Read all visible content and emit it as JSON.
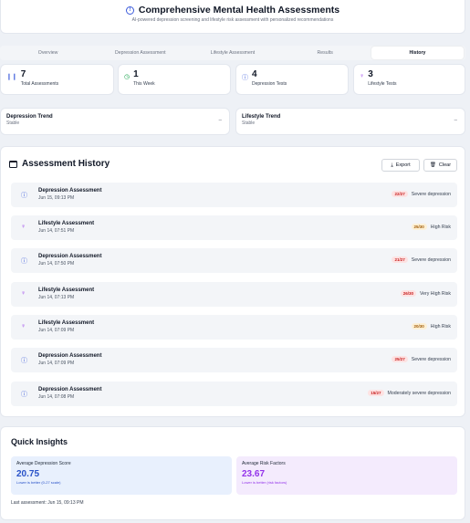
{
  "header": {
    "title": "Comprehensive Mental Health Assessments",
    "subtitle": "AI-powered depression screening and lifestyle risk assessment with personalized recommendations",
    "icon": "brain-icon"
  },
  "tabs": [
    {
      "label": "Overview"
    },
    {
      "label": "Depression Assessment"
    },
    {
      "label": "Lifestyle Assessment"
    },
    {
      "label": "Results"
    },
    {
      "label": "History",
      "active": true
    }
  ],
  "stats": [
    {
      "value": "7",
      "label": "Total Assessments",
      "icon": "chart-icon",
      "color": "#3b5bdb"
    },
    {
      "value": "1",
      "label": "This Week",
      "icon": "clock-icon",
      "color": "#16a34a"
    },
    {
      "value": "4",
      "label": "Depression Tests",
      "icon": "brain-icon",
      "color": "#3b5bdb"
    },
    {
      "value": "3",
      "label": "Lifestyle Tests",
      "icon": "person-icon",
      "color": "#9333ea"
    }
  ],
  "trends": [
    {
      "title": "Depression Trend",
      "status": "Stable",
      "indicator": "–"
    },
    {
      "title": "Lifestyle Trend",
      "status": "Stable",
      "indicator": "–"
    }
  ],
  "history": {
    "title": "Assessment History",
    "export_label": "Export",
    "clear_label": "Clear",
    "items": [
      {
        "type": "Depression Assessment",
        "date": "Jun 15, 09:13 PM",
        "score": "22/27",
        "severity": "Severe depression",
        "kind": "dep",
        "badge_color": "red"
      },
      {
        "type": "Lifestyle Assessment",
        "date": "Jun 14, 07:51 PM",
        "score": "25/30",
        "severity": "High Risk",
        "kind": "life",
        "badge_color": "amber"
      },
      {
        "type": "Depression Assessment",
        "date": "Jun 14, 07:50 PM",
        "score": "21/27",
        "severity": "Severe depression",
        "kind": "dep",
        "badge_color": "red"
      },
      {
        "type": "Lifestyle Assessment",
        "date": "Jun 14, 07:13 PM",
        "score": "26/30",
        "severity": "Very High Risk",
        "kind": "life",
        "badge_color": "red"
      },
      {
        "type": "Lifestyle Assessment",
        "date": "Jun 14, 07:09 PM",
        "score": "20/30",
        "severity": "High Risk",
        "kind": "life",
        "badge_color": "amber"
      },
      {
        "type": "Depression Assessment",
        "date": "Jun 14, 07:09 PM",
        "score": "25/27",
        "severity": "Severe depression",
        "kind": "dep",
        "badge_color": "red"
      },
      {
        "type": "Depression Assessment",
        "date": "Jun 14, 07:08 PM",
        "score": "15/27",
        "severity": "Moderately severe depression",
        "kind": "dep",
        "badge_color": "red"
      }
    ]
  },
  "insights": {
    "title": "Quick Insights",
    "depression": {
      "label": "Average Depression Score",
      "value": "20.75",
      "note": "Lower is better (0-27 scale)"
    },
    "risk": {
      "label": "Average Risk Factors",
      "value": "23.67",
      "note": "Lower is better (risk factors)"
    },
    "last_assessment": "Last assessment: Jun 15, 09:13 PM"
  }
}
